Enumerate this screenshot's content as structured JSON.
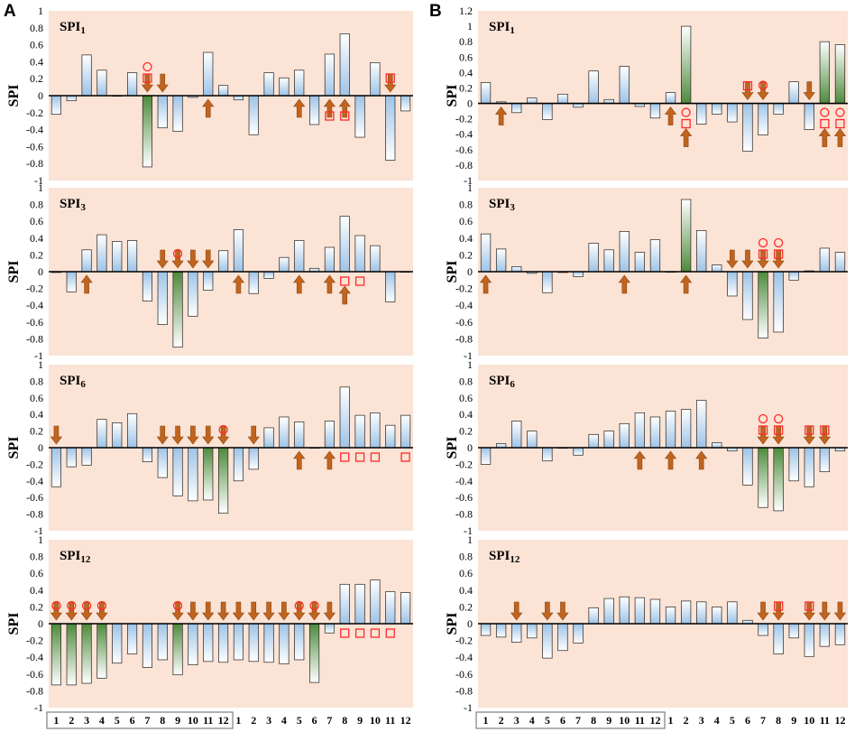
{
  "figure": {
    "panel_labels": [
      "A",
      "B"
    ],
    "y_axis_label": "SPI",
    "month_labels": [
      "1",
      "2",
      "3",
      "4",
      "5",
      "6",
      "7",
      "8",
      "9",
      "10",
      "11",
      "12"
    ]
  },
  "chart_data": [
    {
      "type": "bar",
      "panel": "A",
      "title_base": "SPI",
      "title_sub": "1",
      "ylabel": "SPI",
      "ylim": [
        -1,
        1
      ],
      "yticks": [
        -1,
        -0.8,
        -0.6,
        -0.4,
        -0.2,
        0,
        0.2,
        0.4,
        0.6,
        0.8,
        1
      ],
      "values": [
        -0.22,
        -0.06,
        0.48,
        0.3,
        0,
        0.27,
        -0.84,
        -0.38,
        -0.42,
        -0.02,
        0.51,
        0.12,
        -0.05,
        -0.46,
        0.27,
        0.21,
        0.3,
        -0.34,
        0.49,
        0.73,
        -0.49,
        0.39,
        -0.76,
        -0.18
      ],
      "highlighted": [
        6
      ],
      "markers": [
        {
          "bar": 6,
          "type": "down-arrow"
        },
        {
          "bar": 6,
          "type": "square"
        },
        {
          "bar": 6,
          "type": "circle"
        },
        {
          "bar": 7,
          "type": "down-arrow"
        },
        {
          "bar": 10,
          "type": "up-arrow"
        },
        {
          "bar": 16,
          "type": "up-arrow"
        },
        {
          "bar": 18,
          "type": "up-arrow"
        },
        {
          "bar": 18,
          "type": "square"
        },
        {
          "bar": 19,
          "type": "up-arrow"
        },
        {
          "bar": 19,
          "type": "square"
        },
        {
          "bar": 22,
          "type": "down-arrow"
        },
        {
          "bar": 22,
          "type": "square"
        }
      ]
    },
    {
      "type": "bar",
      "panel": "B",
      "title_base": "SPI",
      "title_sub": "1",
      "ylabel": "SPI",
      "ylim": [
        -1,
        1.2
      ],
      "yticks": [
        -1,
        -0.8,
        -0.6,
        -0.4,
        -0.2,
        0,
        0.2,
        0.4,
        0.6,
        0.8,
        1,
        1.2
      ],
      "values": [
        0.27,
        0.02,
        -0.12,
        0.07,
        -0.21,
        0.12,
        -0.05,
        0.42,
        0.05,
        0.48,
        -0.04,
        -0.19,
        0.14,
        1.0,
        -0.27,
        -0.14,
        -0.24,
        -0.62,
        -0.41,
        -0.14,
        0.28,
        -0.34,
        0.8,
        0.76
      ],
      "highlighted": [
        13,
        22,
        23
      ],
      "markers": [
        {
          "bar": 1,
          "type": "up-arrow"
        },
        {
          "bar": 12,
          "type": "up-arrow"
        },
        {
          "bar": 13,
          "type": "circle"
        },
        {
          "bar": 13,
          "type": "square"
        },
        {
          "bar": 13,
          "type": "up-arrow"
        },
        {
          "bar": 17,
          "type": "down-arrow"
        },
        {
          "bar": 17,
          "type": "square"
        },
        {
          "bar": 18,
          "type": "down-arrow"
        },
        {
          "bar": 18,
          "type": "circle"
        },
        {
          "bar": 21,
          "type": "down-arrow"
        },
        {
          "bar": 22,
          "type": "circle"
        },
        {
          "bar": 22,
          "type": "square"
        },
        {
          "bar": 22,
          "type": "up-arrow"
        },
        {
          "bar": 23,
          "type": "circle"
        },
        {
          "bar": 23,
          "type": "square"
        },
        {
          "bar": 23,
          "type": "up-arrow"
        }
      ]
    },
    {
      "type": "bar",
      "panel": "A",
      "title_base": "SPI",
      "title_sub": "3",
      "ylabel": "SPI",
      "ylim": [
        -1,
        1
      ],
      "yticks": [
        -1,
        -0.8,
        -0.6,
        -0.4,
        -0.2,
        0,
        0.2,
        0.4,
        0.6,
        0.8,
        1
      ],
      "values": [
        -0.01,
        -0.24,
        0.26,
        0.44,
        0.36,
        0.37,
        -0.35,
        -0.63,
        -0.9,
        -0.53,
        -0.22,
        0.25,
        0.5,
        -0.26,
        -0.08,
        0.17,
        0.37,
        0.04,
        0.29,
        0.66,
        0.43,
        0.31,
        -0.36,
        0
      ],
      "highlighted": [
        8
      ],
      "markers": [
        {
          "bar": 2,
          "type": "up-arrow"
        },
        {
          "bar": 7,
          "type": "down-arrow"
        },
        {
          "bar": 8,
          "type": "down-arrow"
        },
        {
          "bar": 8,
          "type": "circle"
        },
        {
          "bar": 9,
          "type": "down-arrow"
        },
        {
          "bar": 10,
          "type": "down-arrow"
        },
        {
          "bar": 12,
          "type": "up-arrow"
        },
        {
          "bar": 16,
          "type": "up-arrow"
        },
        {
          "bar": 18,
          "type": "up-arrow"
        },
        {
          "bar": 19,
          "type": "square"
        },
        {
          "bar": 19,
          "type": "up-arrow"
        },
        {
          "bar": 20,
          "type": "square"
        }
      ]
    },
    {
      "type": "bar",
      "panel": "B",
      "title_base": "SPI",
      "title_sub": "3",
      "ylabel": "SPI",
      "ylim": [
        -1,
        1
      ],
      "yticks": [
        -1,
        -0.8,
        -0.6,
        -0.4,
        -0.2,
        0,
        0.2,
        0.4,
        0.6,
        0.8,
        1
      ],
      "values": [
        0.45,
        0.27,
        0.06,
        -0.02,
        -0.25,
        -0.01,
        -0.06,
        0.34,
        0.26,
        0.48,
        0.23,
        0.38,
        0,
        0.86,
        0.49,
        0.08,
        -0.29,
        -0.57,
        -0.79,
        -0.72,
        -0.1,
        0.01,
        0.28,
        0.23
      ],
      "highlighted": [
        13,
        18
      ],
      "markers": [
        {
          "bar": 0,
          "type": "up-arrow"
        },
        {
          "bar": 9,
          "type": "up-arrow"
        },
        {
          "bar": 13,
          "type": "up-arrow"
        },
        {
          "bar": 16,
          "type": "down-arrow"
        },
        {
          "bar": 17,
          "type": "down-arrow"
        },
        {
          "bar": 18,
          "type": "down-arrow"
        },
        {
          "bar": 18,
          "type": "square"
        },
        {
          "bar": 18,
          "type": "circle"
        },
        {
          "bar": 19,
          "type": "down-arrow"
        },
        {
          "bar": 19,
          "type": "square"
        },
        {
          "bar": 19,
          "type": "circle"
        }
      ]
    },
    {
      "type": "bar",
      "panel": "A",
      "title_base": "SPI",
      "title_sub": "6",
      "ylabel": "SPI",
      "ylim": [
        -1,
        1
      ],
      "yticks": [
        -1,
        -0.8,
        -0.6,
        -0.4,
        -0.2,
        0,
        0.2,
        0.4,
        0.6,
        0.8,
        1
      ],
      "values": [
        -0.47,
        -0.23,
        -0.21,
        0.34,
        0.3,
        0.41,
        -0.17,
        -0.36,
        -0.58,
        -0.64,
        -0.63,
        -0.79,
        -0.4,
        -0.26,
        0.24,
        0.37,
        0.31,
        0,
        0.32,
        0.73,
        0.39,
        0.42,
        0.27,
        0.39
      ],
      "highlighted": [
        10,
        11
      ],
      "markers": [
        {
          "bar": 0,
          "type": "down-arrow"
        },
        {
          "bar": 7,
          "type": "down-arrow"
        },
        {
          "bar": 8,
          "type": "down-arrow"
        },
        {
          "bar": 9,
          "type": "down-arrow"
        },
        {
          "bar": 10,
          "type": "down-arrow"
        },
        {
          "bar": 11,
          "type": "down-arrow"
        },
        {
          "bar": 11,
          "type": "circle"
        },
        {
          "bar": 13,
          "type": "down-arrow"
        },
        {
          "bar": 16,
          "type": "up-arrow"
        },
        {
          "bar": 18,
          "type": "up-arrow"
        },
        {
          "bar": 19,
          "type": "square"
        },
        {
          "bar": 20,
          "type": "square"
        },
        {
          "bar": 21,
          "type": "square"
        },
        {
          "bar": 23,
          "type": "square"
        }
      ]
    },
    {
      "type": "bar",
      "panel": "B",
      "title_base": "SPI",
      "title_sub": "6",
      "ylabel": "SPI",
      "ylim": [
        -1,
        1
      ],
      "yticks": [
        -1,
        -0.8,
        -0.6,
        -0.4,
        -0.2,
        0,
        0.2,
        0.4,
        0.6,
        0.8,
        1
      ],
      "values": [
        -0.2,
        0.05,
        0.32,
        0.2,
        -0.16,
        0,
        -0.09,
        0.16,
        0.2,
        0.29,
        0.42,
        0.37,
        0.44,
        0.46,
        0.57,
        0.06,
        -0.04,
        -0.45,
        -0.72,
        -0.76,
        -0.4,
        -0.47,
        -0.29,
        -0.04
      ],
      "highlighted": [
        18,
        19
      ],
      "markers": [
        {
          "bar": 10,
          "type": "up-arrow"
        },
        {
          "bar": 12,
          "type": "up-arrow"
        },
        {
          "bar": 14,
          "type": "up-arrow"
        },
        {
          "bar": 18,
          "type": "down-arrow"
        },
        {
          "bar": 18,
          "type": "square"
        },
        {
          "bar": 18,
          "type": "circle"
        },
        {
          "bar": 19,
          "type": "down-arrow"
        },
        {
          "bar": 19,
          "type": "square"
        },
        {
          "bar": 19,
          "type": "circle"
        },
        {
          "bar": 21,
          "type": "down-arrow"
        },
        {
          "bar": 21,
          "type": "square"
        },
        {
          "bar": 22,
          "type": "down-arrow"
        },
        {
          "bar": 22,
          "type": "square"
        }
      ]
    },
    {
      "type": "bar",
      "panel": "A",
      "title_base": "SPI",
      "title_sub": "12",
      "ylabel": "SPI",
      "ylim": [
        -1,
        1
      ],
      "yticks": [
        -1,
        -0.8,
        -0.6,
        -0.4,
        -0.2,
        0,
        0.2,
        0.4,
        0.6,
        0.8,
        1
      ],
      "values": [
        -0.73,
        -0.73,
        -0.71,
        -0.65,
        -0.47,
        -0.36,
        -0.52,
        -0.43,
        -0.61,
        -0.49,
        -0.45,
        -0.46,
        -0.43,
        -0.45,
        -0.46,
        -0.48,
        -0.43,
        -0.7,
        -0.11,
        0.47,
        0.47,
        0.52,
        0.38,
        0.37
      ],
      "highlighted": [
        0,
        1,
        2,
        3,
        8,
        17
      ],
      "markers": [
        {
          "bar": 0,
          "type": "down-arrow"
        },
        {
          "bar": 0,
          "type": "circle"
        },
        {
          "bar": 1,
          "type": "down-arrow"
        },
        {
          "bar": 1,
          "type": "circle"
        },
        {
          "bar": 2,
          "type": "down-arrow"
        },
        {
          "bar": 2,
          "type": "circle"
        },
        {
          "bar": 3,
          "type": "down-arrow"
        },
        {
          "bar": 3,
          "type": "circle"
        },
        {
          "bar": 8,
          "type": "down-arrow"
        },
        {
          "bar": 8,
          "type": "circle"
        },
        {
          "bar": 9,
          "type": "down-arrow"
        },
        {
          "bar": 10,
          "type": "down-arrow"
        },
        {
          "bar": 11,
          "type": "down-arrow"
        },
        {
          "bar": 12,
          "type": "down-arrow"
        },
        {
          "bar": 13,
          "type": "down-arrow"
        },
        {
          "bar": 14,
          "type": "down-arrow"
        },
        {
          "bar": 15,
          "type": "down-arrow"
        },
        {
          "bar": 16,
          "type": "down-arrow"
        },
        {
          "bar": 16,
          "type": "circle"
        },
        {
          "bar": 17,
          "type": "down-arrow"
        },
        {
          "bar": 17,
          "type": "circle"
        },
        {
          "bar": 18,
          "type": "down-arrow"
        },
        {
          "bar": 19,
          "type": "square"
        },
        {
          "bar": 20,
          "type": "square"
        },
        {
          "bar": 21,
          "type": "square"
        },
        {
          "bar": 22,
          "type": "square"
        }
      ]
    },
    {
      "type": "bar",
      "panel": "B",
      "title_base": "SPI",
      "title_sub": "12",
      "ylabel": "SPI",
      "ylim": [
        -1,
        1
      ],
      "yticks": [
        -1,
        -0.8,
        -0.6,
        -0.4,
        -0.2,
        0,
        0.2,
        0.4,
        0.6,
        0.8,
        1
      ],
      "values": [
        -0.14,
        -0.16,
        -0.22,
        -0.17,
        -0.41,
        -0.32,
        -0.23,
        0.19,
        0.3,
        0.32,
        0.31,
        0.29,
        0.2,
        0.27,
        0.26,
        0.2,
        0.26,
        0.04,
        -0.14,
        -0.36,
        -0.17,
        -0.39,
        -0.27,
        -0.25
      ],
      "highlighted": [],
      "markers": [
        {
          "bar": 2,
          "type": "down-arrow"
        },
        {
          "bar": 4,
          "type": "down-arrow"
        },
        {
          "bar": 5,
          "type": "down-arrow"
        },
        {
          "bar": 18,
          "type": "down-arrow"
        },
        {
          "bar": 19,
          "type": "down-arrow"
        },
        {
          "bar": 19,
          "type": "square"
        },
        {
          "bar": 21,
          "type": "down-arrow"
        },
        {
          "bar": 21,
          "type": "square"
        },
        {
          "bar": 22,
          "type": "down-arrow"
        },
        {
          "bar": 23,
          "type": "down-arrow"
        }
      ]
    }
  ]
}
